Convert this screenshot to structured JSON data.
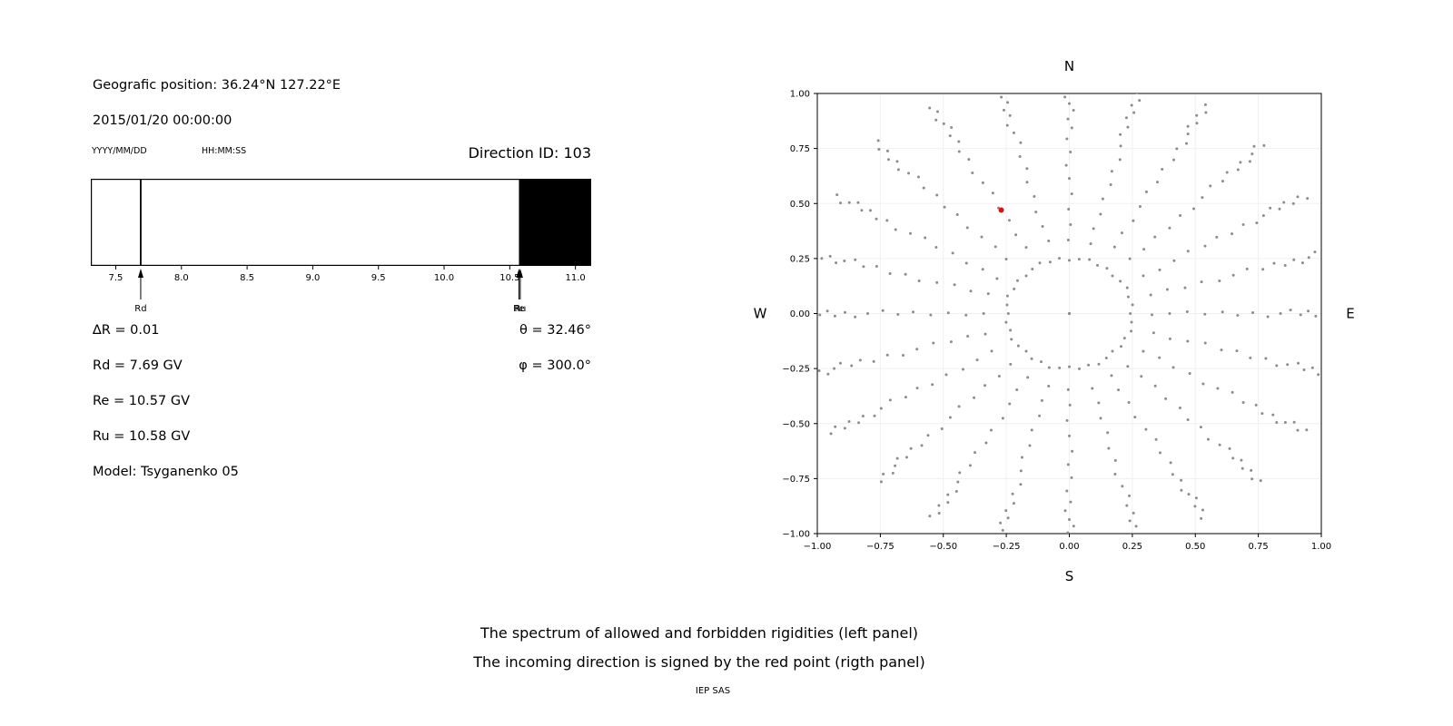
{
  "header": {
    "geographic_position": "Geografic position: 36.24°N 127.22°E",
    "datetime": "2015/01/20 00:00:00",
    "date_format_label": "YYYY/MM/DD",
    "time_format_label": "HH:MM:SS",
    "direction_id": "Direction ID: 103"
  },
  "parameters": {
    "delta_r": "∆R = 0.01",
    "rd": "Rd = 7.69 GV",
    "re": "Re = 10.57 GV",
    "ru": "Ru = 10.58 GV",
    "model": "Model: Tsyganenko 05",
    "theta": "θ = 32.46°",
    "phi": "φ = 300.0°"
  },
  "captions": {
    "line1": "The spectrum of allowed and forbidden rigidities (left panel)",
    "line2": "The incoming direction is signed by the red point (rigth panel)",
    "credit": "IEP SAS"
  },
  "chart_data": [
    {
      "type": "bar",
      "title": "",
      "xlabel": "",
      "xlim": [
        7.31,
        11.12
      ],
      "xticks": [
        {
          "v": 7.5,
          "label": "7.5"
        },
        {
          "v": 8.0,
          "label": "8.0"
        },
        {
          "v": 8.5,
          "label": "8.5"
        },
        {
          "v": 9.0,
          "label": "9.0"
        },
        {
          "v": 9.5,
          "label": "9.5"
        },
        {
          "v": 10.0,
          "label": "10.0"
        },
        {
          "v": 10.5,
          "label": "10.5"
        },
        {
          "v": 11.0,
          "label": "11.0"
        }
      ],
      "rd_line": {
        "v": 7.69
      },
      "forbidden_band": {
        "from": 10.57,
        "to": 11.12,
        "color": "#000000"
      },
      "arrows": [
        {
          "v": 7.69,
          "label": "Rd"
        },
        {
          "v": 10.57,
          "label": "Re"
        },
        {
          "v": 10.58,
          "label": "Ru"
        }
      ],
      "values": {
        "delta_R": 0.01,
        "Rd_GV": 7.69,
        "Re_GV": 10.57,
        "Ru_GV": 10.58,
        "theta_deg": 32.46,
        "phi_deg": 300.0,
        "model": "Tsyganenko 05",
        "direction_id": 103
      }
    },
    {
      "type": "scatter",
      "xlim": [
        -1.0,
        1.0
      ],
      "ylim": [
        -1.0,
        1.0
      ],
      "grid": true,
      "legend": "none",
      "xticks": [
        {
          "v": -1.0,
          "label": "−1.00"
        },
        {
          "v": -0.75,
          "label": "−0.75"
        },
        {
          "v": -0.5,
          "label": "−0.50"
        },
        {
          "v": -0.25,
          "label": "−0.25"
        },
        {
          "v": 0.0,
          "label": "0.00"
        },
        {
          "v": 0.25,
          "label": "0.25"
        },
        {
          "v": 0.5,
          "label": "0.50"
        },
        {
          "v": 0.75,
          "label": "0.75"
        },
        {
          "v": 1.0,
          "label": "1.00"
        }
      ],
      "yticks": [
        {
          "v": 1.0,
          "label": "1.00"
        },
        {
          "v": 0.75,
          "label": "0.75"
        },
        {
          "v": 0.5,
          "label": "0.50"
        },
        {
          "v": 0.25,
          "label": "0.25"
        },
        {
          "v": 0.0,
          "label": "0.00"
        },
        {
          "v": -0.25,
          "label": "−0.25"
        },
        {
          "v": -0.5,
          "label": "−0.50"
        },
        {
          "v": -0.75,
          "label": "−0.75"
        },
        {
          "v": -1.0,
          "label": "−1.00"
        }
      ],
      "compass": {
        "top": "N",
        "bottom": "S",
        "left": "W",
        "right": "E"
      },
      "dot_color": "#8c8c8c",
      "red_point": {
        "x": -0.27,
        "y": 0.47,
        "color": "#e01010"
      },
      "center_dot": {
        "x": 0.0,
        "y": 0.0
      },
      "inner_ring": {
        "radius": 0.25,
        "count": 40
      },
      "spokes": {
        "count": 24,
        "step_deg": 15,
        "radii": [
          0.34,
          0.41,
          0.48,
          0.55,
          0.62,
          0.68,
          0.74,
          0.8,
          0.85,
          0.89,
          0.93,
          0.96,
          0.99,
          1.02,
          1.05,
          1.08
        ]
      }
    }
  ]
}
